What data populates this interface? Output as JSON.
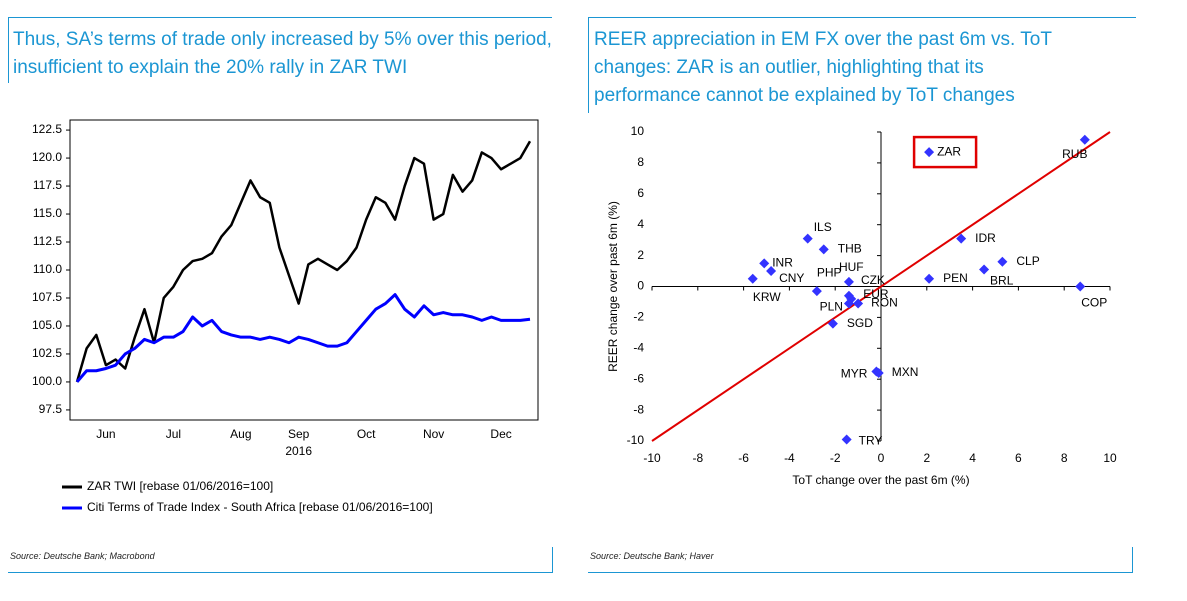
{
  "chart_data": [
    {
      "type": "line",
      "title": "Thus, SA’s terms of trade only increased by 5% over this period, insufficient to explain the 20% rally in ZAR TWI",
      "source": "Source: Deutsche Bank; Macrobond",
      "xlabel": "2016",
      "categories": [
        null,
        null,
        null,
        "Jun",
        null,
        null,
        null,
        null,
        null,
        null,
        "Jul",
        null,
        null,
        null,
        null,
        null,
        null,
        "Aug",
        null,
        null,
        null,
        null,
        null,
        "Sep",
        null,
        null,
        null,
        null,
        null,
        null,
        "Oct",
        null,
        null,
        null,
        null,
        null,
        null,
        "Nov",
        null,
        null,
        null,
        null,
        null,
        null,
        "Dec",
        null,
        null,
        null
      ],
      "series": [
        {
          "name": "ZAR TWI [rebase 01/06/2016=100]",
          "color": "#000000",
          "values": [
            100.0,
            103.0,
            104.2,
            101.5,
            102.0,
            101.2,
            104.0,
            106.5,
            103.5,
            107.5,
            108.5,
            110.0,
            110.8,
            111.0,
            111.5,
            113.0,
            114.0,
            116.0,
            118.0,
            116.5,
            116.0,
            112.0,
            109.5,
            107.0,
            110.5,
            111.0,
            110.5,
            110.0,
            110.8,
            112.0,
            114.5,
            116.5,
            116.0,
            114.5,
            117.5,
            120.0,
            119.5,
            114.5,
            115.0,
            118.5,
            117.0,
            118.0,
            120.5,
            120.0,
            119.0,
            119.5,
            120.0,
            121.5
          ]
        },
        {
          "name": "Citi Terms of Trade Index - South Africa [rebase 01/06/2016=100]",
          "color": "#0000ff",
          "values": [
            100.0,
            101.0,
            101.0,
            101.2,
            101.5,
            102.5,
            103.0,
            103.8,
            103.5,
            104.0,
            104.0,
            104.5,
            105.8,
            105.0,
            105.5,
            104.5,
            104.2,
            104.0,
            104.0,
            103.8,
            104.0,
            103.8,
            103.5,
            104.0,
            103.8,
            103.5,
            103.2,
            103.2,
            103.5,
            104.5,
            105.5,
            106.5,
            107.0,
            107.8,
            106.5,
            105.8,
            106.8,
            106.0,
            106.2,
            106.0,
            106.0,
            105.8,
            105.5,
            105.8,
            105.5,
            105.5,
            105.5,
            105.6
          ]
        }
      ],
      "ylim": [
        96.6,
        123.4
      ],
      "yticks": [
        97.5,
        {
          "value": 100,
          "label": "100.0"
        },
        102.5,
        {
          "value": 105,
          "label": "105.0"
        },
        107.5,
        {
          "value": 110,
          "label": "110.0"
        },
        112.5,
        {
          "value": 115,
          "label": "115.0"
        },
        117.5,
        {
          "value": 120,
          "label": "120.0"
        },
        122.5
      ]
    },
    {
      "type": "scatter",
      "title": "REER appreciation in EM FX over the past 6m vs. ToT changes: ZAR is an outlier, highlighting that its performance cannot be explained by ToT changes",
      "source": "Source: Deutsche Bank; Haver",
      "xlabel": "ToT change over the past 6m (%)",
      "ylabel": "REER change over past 6m (%)",
      "labels": [
        "ZAR",
        "RUB",
        "IDR",
        "CLP",
        "BRL",
        "PEN",
        "COP",
        "ILS",
        "THB",
        "INR",
        "CNY",
        "KRW",
        "PHP",
        "HUF",
        "CZK",
        "EUR",
        "PLN",
        "RON",
        "SGD",
        "MYR",
        "MXN",
        "TRY"
      ],
      "x": [
        2.1,
        8.9,
        3.5,
        5.3,
        4.5,
        2.1,
        8.7,
        -3.2,
        -2.5,
        -5.1,
        -4.8,
        -5.6,
        -2.8,
        -1.4,
        -1.4,
        -1.3,
        -1.4,
        -1.0,
        -2.1,
        -0.2,
        -0.1,
        -1.5
      ],
      "values": [
        8.7,
        9.5,
        3.1,
        1.6,
        1.1,
        0.5,
        0.0,
        3.1,
        2.4,
        1.5,
        1.0,
        0.5,
        -0.3,
        0.3,
        -0.6,
        -0.8,
        -1.1,
        -1.1,
        -2.4,
        -5.5,
        -5.6,
        -9.9
      ],
      "color": "#3333ff",
      "highlight": [
        0
      ],
      "highlight_color": "#e00000",
      "reference_line": {
        "x": [
          -10,
          10
        ],
        "y": [
          -10,
          10
        ],
        "color": "#e00000"
      },
      "xlim": [
        -10,
        10
      ],
      "ylim": [
        -10,
        10
      ],
      "xticks": [
        -10,
        -8,
        -6,
        -4,
        -2,
        0,
        2,
        4,
        6,
        8,
        10
      ],
      "yticks": [
        -10,
        -8,
        -6,
        -4,
        -2,
        0,
        2,
        4,
        6,
        8,
        10
      ]
    }
  ]
}
